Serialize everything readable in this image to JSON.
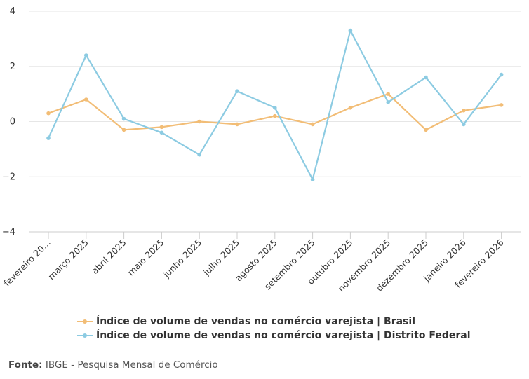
{
  "chart_data": {
    "type": "line",
    "categories": [
      "fevereiro 20…",
      "março 2025",
      "abril 2025",
      "maio 2025",
      "junho 2025",
      "julho 2025",
      "agosto 2025",
      "setembro 2025",
      "outubro 2025",
      "novembro 2025",
      "dezembro 2025",
      "janeiro 2026",
      "fevereiro 2026"
    ],
    "series": [
      {
        "name": "Índice de volume de vendas no comércio varejista | Brasil",
        "color": "#f2bd76",
        "values": [
          0.3,
          0.8,
          -0.3,
          -0.2,
          0.0,
          -0.1,
          0.2,
          -0.1,
          0.5,
          1.0,
          -0.3,
          0.4,
          0.6
        ]
      },
      {
        "name": "Índice de volume de vendas no comércio varejista | Distrito Federal",
        "color": "#8ccbe2",
        "values": [
          -0.6,
          2.4,
          0.1,
          -0.4,
          -1.2,
          1.1,
          0.5,
          -2.1,
          3.3,
          0.7,
          1.6,
          -0.1,
          1.7
        ]
      }
    ],
    "ylim": [
      -4,
      4
    ],
    "yticks": [
      4,
      2,
      0,
      -2,
      -4
    ],
    "ytick_labels": [
      "4",
      "2",
      "0",
      "−2",
      "−4"
    ],
    "grid": true,
    "legend_position": "bottom-center"
  },
  "source": {
    "label": "Fonte:",
    "text": "IBGE - Pesquisa Mensal de Comércio"
  }
}
